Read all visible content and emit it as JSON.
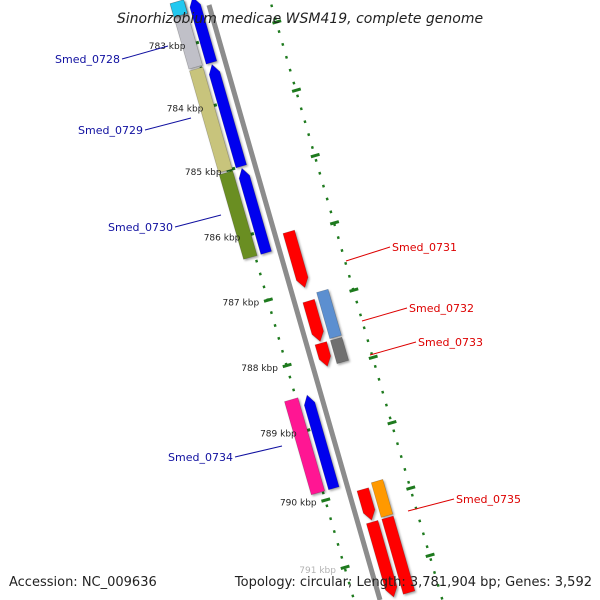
{
  "title": "Sinorhizobium medicae WSM419, complete genome",
  "footer": {
    "accession": "Accession: NC_009636",
    "topology": "Topology: circular; Length: 3,781,904 bp; Genes: 3,592"
  },
  "tick_labels": [
    "783 kbp",
    "784 kbp",
    "785 kbp",
    "786 kbp",
    "787 kbp",
    "788 kbp",
    "789 kbp",
    "790 kbp",
    "791 kbp"
  ],
  "genes": [
    {
      "label": "Smed_0728",
      "strand": "reverse",
      "color": "#1010a0"
    },
    {
      "label": "Smed_0729",
      "strand": "reverse",
      "color": "#1010a0"
    },
    {
      "label": "Smed_0730",
      "strand": "reverse",
      "color": "#1010a0"
    },
    {
      "label": "Smed_0731",
      "strand": "forward",
      "color": "#dd0000"
    },
    {
      "label": "Smed_0732",
      "strand": "forward",
      "color": "#dd0000"
    },
    {
      "label": "Smed_0733",
      "strand": "forward",
      "color": "#dd0000"
    },
    {
      "label": "Smed_0734",
      "strand": "reverse",
      "color": "#1010a0"
    },
    {
      "label": "Smed_0735",
      "strand": "forward",
      "color": "#dd0000"
    }
  ],
  "colors": {
    "backbone": "#8c8c8c",
    "forward_arrow": "#ff0000",
    "reverse_arrow": "#0000ee",
    "tick_mark": "#1e7a1e",
    "cog_light_blue": "#5b8fd0",
    "cog_olive_light": "#c8c47c",
    "cog_olive_dark": "#6b8e23",
    "cog_pink": "#ff1493",
    "cog_orange": "#ff9900",
    "cog_gray": "#707070",
    "cog_silver": "#c0c0c8",
    "cog_cyan": "#22c8f0"
  }
}
